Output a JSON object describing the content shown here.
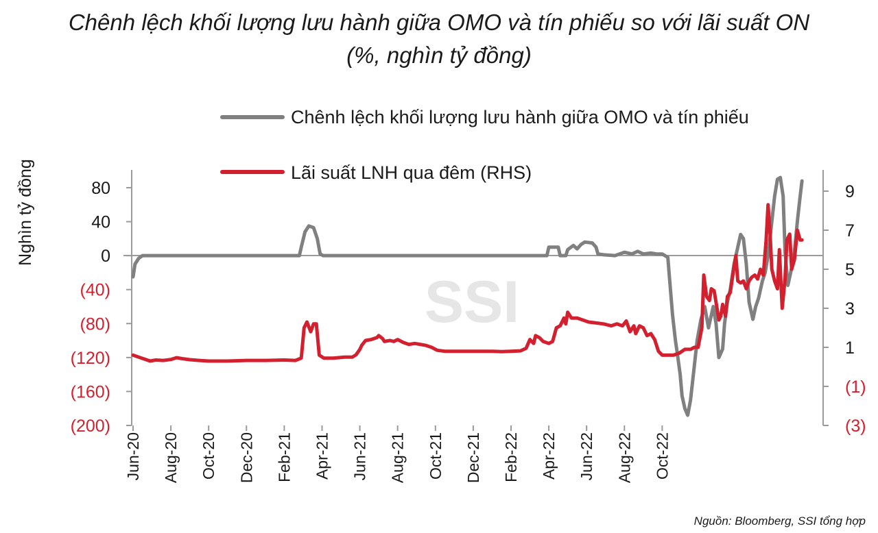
{
  "title_line1": "Chênh lệch khối lượng lưu hành giữa OMO và tín phiếu so với lãi suất ON",
  "title_line2": "(%, nghìn tỷ đồng)",
  "source": "Nguồn: Bloomberg, SSI tổng hợp",
  "watermark": "SSI",
  "colors": {
    "series_gap": "#808080",
    "series_rate": "#d3202f",
    "negative_tick": "#d3202f",
    "axis": "#9a9a9a"
  },
  "chart_data": {
    "type": "line",
    "ylabel_left": "Nghìn tỷ đồng",
    "ylim_left": [
      -200,
      100
    ],
    "ylim_right": [
      -3,
      10
    ],
    "left_ticks": [
      {
        "value": 80,
        "label": "80",
        "negative": false
      },
      {
        "value": 40,
        "label": "40",
        "negative": false
      },
      {
        "value": 0,
        "label": "0",
        "negative": false
      },
      {
        "value": -40,
        "label": "(40)",
        "negative": true
      },
      {
        "value": -80,
        "label": "(80)",
        "negative": true
      },
      {
        "value": -120,
        "label": "(120)",
        "negative": true
      },
      {
        "value": -160,
        "label": "(160)",
        "negative": true
      },
      {
        "value": -200,
        "label": "(200)",
        "negative": true
      }
    ],
    "right_ticks": [
      {
        "value": 9,
        "label": "9",
        "negative": false
      },
      {
        "value": 7,
        "label": "7",
        "negative": false
      },
      {
        "value": 5,
        "label": "5",
        "negative": false
      },
      {
        "value": 3,
        "label": "3",
        "negative": false
      },
      {
        "value": 1,
        "label": "1",
        "negative": false
      },
      {
        "value": -1,
        "label": "(1)",
        "negative": true
      },
      {
        "value": -3,
        "label": "(3)",
        "negative": true
      }
    ],
    "x_ticks": [
      "Jun-20",
      "Aug-20",
      "Oct-20",
      "Dec-20",
      "Feb-21",
      "Apr-21",
      "Jun-21",
      "Aug-21",
      "Oct-21",
      "Dec-21",
      "Feb-22",
      "Apr-22",
      "Jun-22",
      "Aug-22",
      "Oct-22"
    ],
    "x_range_months": [
      0,
      29.5
    ],
    "series": [
      {
        "name": "Chênh lệch khối lượng lưu hành giữa OMO và tín phiếu",
        "axis": "left",
        "points": [
          [
            0.0,
            -25
          ],
          [
            0.1,
            -10
          ],
          [
            0.3,
            -3
          ],
          [
            0.5,
            0
          ],
          [
            3,
            0
          ],
          [
            6,
            0
          ],
          [
            8.8,
            0
          ],
          [
            8.9,
            10
          ],
          [
            9.1,
            28
          ],
          [
            9.3,
            35
          ],
          [
            9.55,
            33
          ],
          [
            9.75,
            20
          ],
          [
            9.9,
            2
          ],
          [
            10.05,
            0
          ],
          [
            13,
            0
          ],
          [
            16,
            0
          ],
          [
            19,
            0
          ],
          [
            21.5,
            0
          ],
          [
            21.9,
            0
          ],
          [
            22.0,
            10
          ],
          [
            22.5,
            10
          ],
          [
            22.6,
            0
          ],
          [
            22.9,
            0
          ],
          [
            23.0,
            7
          ],
          [
            23.3,
            12
          ],
          [
            23.5,
            8
          ],
          [
            23.7,
            13
          ],
          [
            23.9,
            16
          ],
          [
            24.3,
            15
          ],
          [
            24.5,
            10
          ],
          [
            24.6,
            2
          ],
          [
            24.9,
            1
          ],
          [
            25.5,
            0
          ],
          [
            26.0,
            4
          ],
          [
            26.4,
            2
          ],
          [
            26.7,
            5
          ],
          [
            27.0,
            2
          ],
          [
            27.4,
            3
          ],
          [
            27.7,
            2
          ],
          [
            28.0,
            2
          ],
          [
            28.3,
            -2
          ],
          [
            28.4,
            -30
          ],
          [
            28.55,
            -70
          ],
          [
            28.7,
            -100
          ],
          [
            28.8,
            -115
          ],
          [
            28.95,
            -140
          ],
          [
            29.05,
            -165
          ],
          [
            29.2,
            -180
          ],
          [
            29.35,
            -188
          ],
          [
            29.5,
            -170
          ],
          [
            29.7,
            -130
          ],
          [
            29.85,
            -100
          ],
          [
            30.05,
            -75
          ],
          [
            30.25,
            -60
          ],
          [
            30.45,
            -85
          ],
          [
            30.7,
            -60
          ],
          [
            30.85,
            -80
          ],
          [
            31.0,
            -120
          ],
          [
            31.2,
            -110
          ],
          [
            31.3,
            -80
          ],
          [
            31.45,
            -55
          ],
          [
            31.6,
            -40
          ],
          [
            31.8,
            -10
          ],
          [
            32.0,
            10
          ],
          [
            32.15,
            25
          ],
          [
            32.3,
            20
          ],
          [
            32.45,
            -10
          ],
          [
            32.6,
            -55
          ],
          [
            32.8,
            -75
          ],
          [
            32.95,
            -60
          ],
          [
            33.1,
            -50
          ],
          [
            33.3,
            -30
          ],
          [
            33.45,
            -20
          ],
          [
            33.6,
            0
          ],
          [
            33.8,
            40
          ],
          [
            33.95,
            70
          ],
          [
            34.1,
            90
          ],
          [
            34.25,
            92
          ],
          [
            34.4,
            70
          ],
          [
            34.5,
            5
          ],
          [
            34.65,
            -35
          ],
          [
            34.8,
            -20
          ],
          [
            35.0,
            5
          ],
          [
            35.15,
            40
          ],
          [
            35.3,
            70
          ],
          [
            35.4,
            88
          ]
        ]
      },
      {
        "name": "Lãi suất LNH qua đêm (RHS)",
        "axis": "right",
        "points": [
          [
            0.0,
            0.6
          ],
          [
            0.3,
            0.5
          ],
          [
            0.6,
            0.4
          ],
          [
            0.9,
            0.3
          ],
          [
            1.2,
            0.35
          ],
          [
            1.6,
            0.33
          ],
          [
            2.0,
            0.38
          ],
          [
            2.3,
            0.47
          ],
          [
            2.6,
            0.42
          ],
          [
            3.0,
            0.37
          ],
          [
            3.5,
            0.33
          ],
          [
            4.0,
            0.3
          ],
          [
            5,
            0.3
          ],
          [
            6,
            0.33
          ],
          [
            7,
            0.33
          ],
          [
            8.0,
            0.35
          ],
          [
            8.6,
            0.33
          ],
          [
            8.9,
            0.45
          ],
          [
            9.05,
            2.0
          ],
          [
            9.2,
            2.3
          ],
          [
            9.4,
            1.8
          ],
          [
            9.55,
            2.2
          ],
          [
            9.7,
            2.2
          ],
          [
            9.85,
            0.6
          ],
          [
            10.1,
            0.45
          ],
          [
            10.6,
            0.45
          ],
          [
            11.2,
            0.5
          ],
          [
            11.6,
            0.5
          ],
          [
            11.8,
            0.62
          ],
          [
            12.0,
            0.9
          ],
          [
            12.1,
            1.1
          ],
          [
            12.3,
            1.35
          ],
          [
            12.6,
            1.4
          ],
          [
            12.9,
            1.5
          ],
          [
            13.0,
            1.6
          ],
          [
            13.2,
            1.45
          ],
          [
            13.3,
            1.3
          ],
          [
            13.6,
            1.35
          ],
          [
            13.8,
            1.3
          ],
          [
            14.0,
            1.4
          ],
          [
            14.3,
            1.25
          ],
          [
            14.6,
            1.15
          ],
          [
            14.9,
            1.2
          ],
          [
            15.2,
            1.15
          ],
          [
            15.5,
            1.1
          ],
          [
            15.8,
            1.0
          ],
          [
            16.1,
            0.85
          ],
          [
            16.5,
            0.8
          ],
          [
            17,
            0.8
          ],
          [
            17.5,
            0.8
          ],
          [
            18,
            0.8
          ],
          [
            18.5,
            0.8
          ],
          [
            19,
            0.8
          ],
          [
            19.5,
            0.78
          ],
          [
            20.0,
            0.8
          ],
          [
            20.5,
            0.82
          ],
          [
            20.8,
            0.95
          ],
          [
            21.0,
            1.4
          ],
          [
            21.2,
            1.2
          ],
          [
            21.3,
            1.6
          ],
          [
            21.5,
            1.5
          ],
          [
            21.7,
            1.3
          ],
          [
            22.0,
            1.2
          ],
          [
            22.2,
            1.3
          ],
          [
            22.4,
            2.0
          ],
          [
            22.6,
            2.1
          ],
          [
            22.8,
            2.5
          ],
          [
            22.9,
            2.2
          ],
          [
            23.0,
            2.8
          ],
          [
            23.2,
            2.5
          ],
          [
            23.5,
            2.5
          ],
          [
            23.8,
            2.4
          ],
          [
            24.1,
            2.3
          ],
          [
            24.5,
            2.25
          ],
          [
            24.9,
            2.2
          ],
          [
            25.3,
            2.1
          ],
          [
            25.6,
            2.2
          ],
          [
            25.9,
            2.1
          ],
          [
            26.1,
            2.35
          ],
          [
            26.3,
            1.8
          ],
          [
            26.5,
            2.1
          ],
          [
            26.6,
            1.7
          ],
          [
            26.8,
            2.1
          ],
          [
            27.0,
            2.0
          ],
          [
            27.2,
            1.6
          ],
          [
            27.4,
            1.7
          ],
          [
            27.6,
            1.4
          ],
          [
            27.8,
            0.8
          ],
          [
            28.0,
            0.6
          ],
          [
            28.3,
            0.6
          ],
          [
            28.6,
            0.6
          ],
          [
            28.9,
            0.7
          ],
          [
            29.2,
            0.9
          ],
          [
            29.5,
            0.9
          ],
          [
            29.7,
            1.0
          ],
          [
            29.9,
            1.0
          ],
          [
            30.1,
            2.0
          ],
          [
            30.2,
            4.7
          ],
          [
            30.35,
            3.6
          ],
          [
            30.5,
            3.4
          ],
          [
            30.6,
            4.0
          ],
          [
            30.75,
            3.9
          ],
          [
            30.9,
            3.0
          ],
          [
            31.0,
            2.4
          ],
          [
            31.1,
            2.6
          ],
          [
            31.2,
            3.2
          ],
          [
            31.35,
            2.6
          ],
          [
            31.45,
            3.6
          ],
          [
            31.6,
            3.8
          ],
          [
            31.75,
            4.8
          ],
          [
            31.9,
            5.7
          ],
          [
            32.0,
            4.4
          ],
          [
            32.15,
            4.3
          ],
          [
            32.3,
            4.4
          ],
          [
            32.45,
            4.0
          ],
          [
            32.6,
            4.4
          ],
          [
            32.75,
            4.6
          ],
          [
            32.9,
            4.7
          ],
          [
            33.05,
            4.5
          ],
          [
            33.2,
            5.0
          ],
          [
            33.35,
            4.7
          ],
          [
            33.5,
            6.5
          ],
          [
            33.6,
            8.3
          ],
          [
            33.7,
            7.0
          ],
          [
            33.8,
            5.0
          ],
          [
            33.95,
            4.4
          ],
          [
            34.1,
            4.0
          ],
          [
            34.2,
            6.0
          ],
          [
            34.35,
            3.0
          ],
          [
            34.5,
            4.5
          ],
          [
            34.6,
            6.5
          ],
          [
            34.75,
            6.8
          ],
          [
            34.85,
            5.0
          ],
          [
            35.0,
            5.5
          ],
          [
            35.15,
            7.0
          ],
          [
            35.3,
            6.5
          ],
          [
            35.4,
            6.5
          ]
        ]
      }
    ]
  }
}
